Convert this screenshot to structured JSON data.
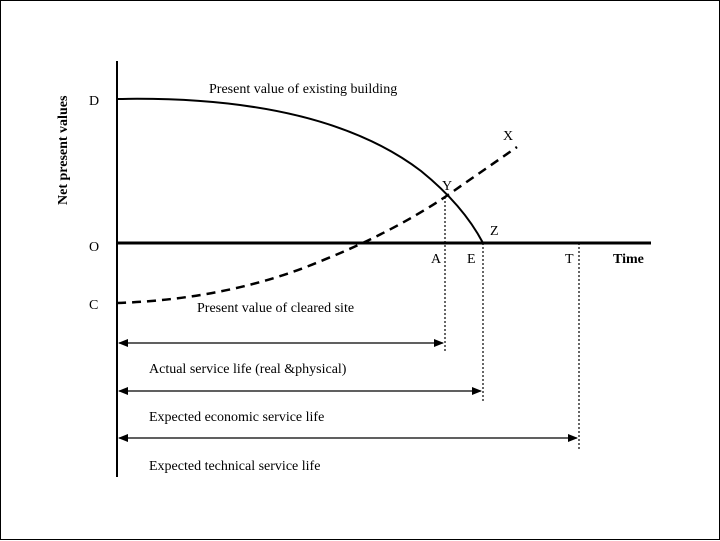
{
  "diagram": {
    "y_axis_label": "Net present values",
    "x_axis_label": "Time",
    "point_labels": {
      "D": "D",
      "O": "O",
      "C": "C",
      "X": "X",
      "Y": "Y",
      "Z": "Z",
      "A": "A",
      "E": "E",
      "T": "T"
    },
    "curve_labels": {
      "existing_building": "Present value of existing building",
      "cleared_site": "Present value of cleared site"
    },
    "span_labels": {
      "actual": "Actual service life (real &physical)",
      "economic": "Expected economic service life",
      "technical": "Expected technical service life"
    }
  }
}
